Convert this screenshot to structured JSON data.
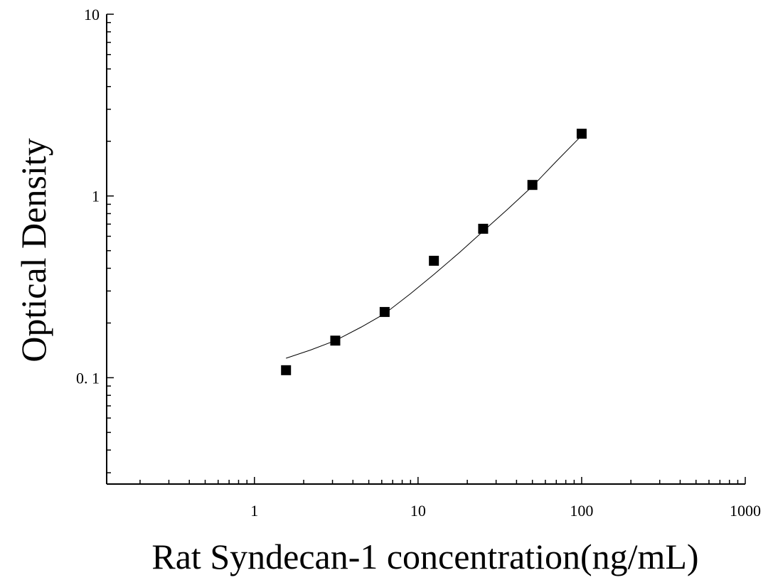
{
  "chart_data": {
    "type": "scatter",
    "title": "",
    "xlabel": "Rat Syndecan-1 concentration(ng/mL)",
    "ylabel": "Optical Density",
    "x_scale": "log",
    "y_scale": "log",
    "xlim": [
      0.125,
      1000
    ],
    "ylim": [
      0.026,
      10
    ],
    "x_ticks": [
      {
        "value": 1,
        "label": "1"
      },
      {
        "value": 10,
        "label": "10"
      },
      {
        "value": 100,
        "label": "100"
      },
      {
        "value": 1000,
        "label": "1000"
      }
    ],
    "y_ticks": [
      {
        "value": 0.1,
        "label": "0. 1"
      },
      {
        "value": 1,
        "label": "1"
      },
      {
        "value": 10,
        "label": "10"
      }
    ],
    "grid": false,
    "series": [
      {
        "marker": "square",
        "color": "#000000",
        "x": [
          1.56,
          3.12,
          6.25,
          12.5,
          25,
          50,
          100
        ],
        "y": [
          0.11,
          0.16,
          0.23,
          0.44,
          0.66,
          1.15,
          2.2
        ]
      }
    ],
    "fit_curve": {
      "color": "#000000",
      "x": [
        1.56,
        2.2,
        3.12,
        4.5,
        6.25,
        9,
        12.5,
        18,
        25,
        35,
        50,
        70,
        100
      ],
      "y": [
        0.128,
        0.142,
        0.16,
        0.19,
        0.225,
        0.29,
        0.37,
        0.49,
        0.64,
        0.84,
        1.13,
        1.55,
        2.15
      ]
    }
  }
}
